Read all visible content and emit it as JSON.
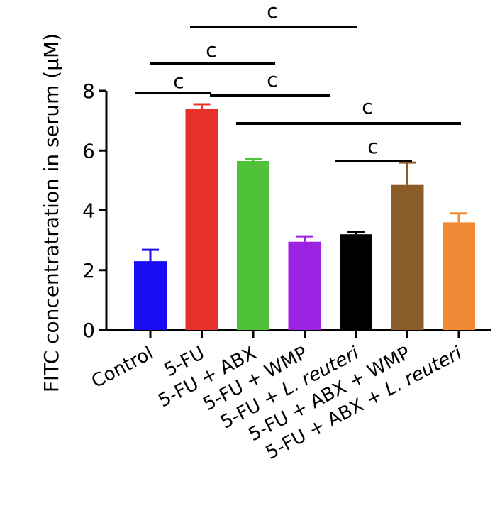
{
  "chart_data": {
    "type": "bar",
    "ylabel": "FITC concentratration in serum (μM)",
    "ylim": [
      0,
      8
    ],
    "yticks": [
      "0",
      "2",
      "4",
      "6",
      "8"
    ],
    "grid": false,
    "categories": [
      {
        "label": "Control",
        "italic": null
      },
      {
        "label": "5-FU",
        "italic": null
      },
      {
        "label": "5-FU + ABX",
        "italic": null
      },
      {
        "label": "5-FU + WMP",
        "italic": null
      },
      {
        "label": "5-FU + L. reuteri",
        "prefix": "5-FU + ",
        "italic": "L. reuteri",
        "suffix": ""
      },
      {
        "label": "5-FU + ABX + WMP",
        "italic": null
      },
      {
        "label": "5-FU + ABX + L. reuteri",
        "prefix": "5-FU + ABX + ",
        "italic": "L. reuteri",
        "suffix": ""
      }
    ],
    "values": [
      2.3,
      7.4,
      5.65,
      2.95,
      3.2,
      4.85,
      3.6
    ],
    "errors": [
      0.38,
      0.15,
      0.07,
      0.18,
      0.07,
      0.75,
      0.3
    ],
    "colors": [
      "#1a0cf2",
      "#e8302a",
      "#4fc23a",
      "#9a22e0",
      "#000000",
      "#8a5c2a",
      "#f08a36"
    ],
    "significance": [
      {
        "from": 0,
        "to": 1,
        "label": "c"
      },
      {
        "from": 1,
        "to": 3,
        "label": "c"
      },
      {
        "from": 0,
        "to": 2,
        "label": "c"
      },
      {
        "from": 1,
        "to": 4,
        "label": "c"
      },
      {
        "from": 2,
        "to": 6,
        "label": "c"
      },
      {
        "from": 4,
        "to": 5,
        "label": "c"
      }
    ]
  }
}
